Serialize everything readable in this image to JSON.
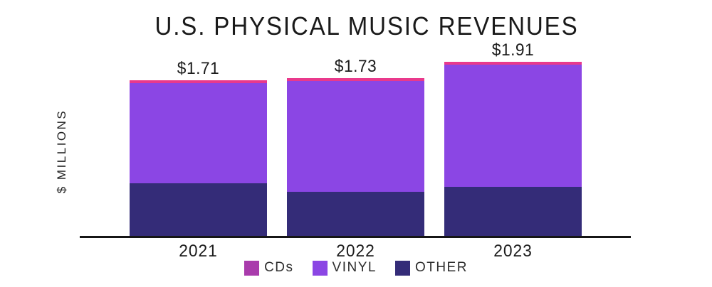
{
  "title": "U.S. PHYSICAL MUSIC REVENUES",
  "y_axis_label": "$ MILLIONS",
  "legend": [
    {
      "label": "CDs",
      "color": "#a93bac"
    },
    {
      "label": "VINYL",
      "color": "#8b46e4"
    },
    {
      "label": "OTHER",
      "color": "#342c78"
    }
  ],
  "chart_data": {
    "type": "bar",
    "stacked": true,
    "title": "U.S. PHYSICAL MUSIC REVENUES",
    "ylabel": "$ MILLIONS",
    "categories": [
      "2021",
      "2022",
      "2023"
    ],
    "series": [
      {
        "name": "CDs",
        "color": "#e9398c",
        "values": [
          0.03,
          0.03,
          0.03
        ]
      },
      {
        "name": "VINYL",
        "color": "#8b46e4",
        "values": [
          1.1,
          1.22,
          1.34
        ]
      },
      {
        "name": "OTHER",
        "color": "#342c78",
        "values": [
          0.58,
          0.48,
          0.54
        ]
      }
    ],
    "totals": [
      1.71,
      1.73,
      1.91
    ],
    "total_labels": [
      "$1.71",
      "$1.73",
      "$1.91"
    ],
    "ylim": [
      0,
      2.0
    ],
    "grid": false,
    "y_ticks_visible": false,
    "legend_position": "bottom"
  }
}
